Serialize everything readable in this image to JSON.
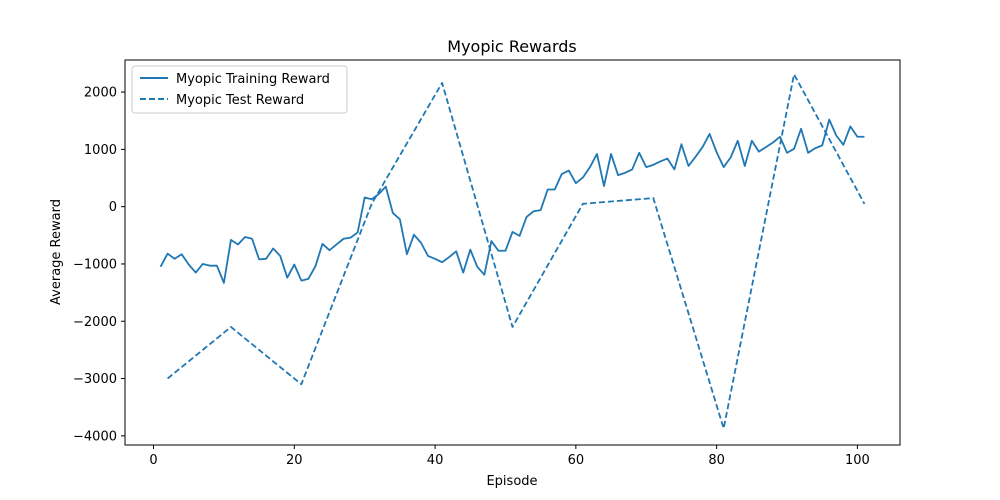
{
  "chart_data": {
    "type": "line",
    "title": "Myopic Rewards",
    "xlabel": "Episode",
    "ylabel": "Average Reward",
    "xlim": [
      -4.05,
      106.05
    ],
    "ylim": [
      -4160,
      2560
    ],
    "xticks": [
      0,
      20,
      40,
      60,
      80,
      100
    ],
    "yticks": [
      -4000,
      -3000,
      -2000,
      -1000,
      0,
      1000,
      2000
    ],
    "grid": false,
    "legend_position": "upper-left",
    "series": [
      {
        "name": "Myopic Training Reward",
        "style": "solid",
        "color": "#1f77b4",
        "x": [
          1,
          2,
          3,
          4,
          5,
          6,
          7,
          8,
          9,
          10,
          11,
          12,
          13,
          14,
          15,
          16,
          17,
          18,
          19,
          20,
          21,
          22,
          23,
          24,
          25,
          26,
          27,
          28,
          29,
          30,
          31,
          32,
          33,
          34,
          35,
          36,
          37,
          38,
          39,
          40,
          41,
          42,
          43,
          44,
          45,
          46,
          47,
          48,
          49,
          50,
          51,
          52,
          53,
          54,
          55,
          56,
          57,
          58,
          59,
          60,
          61,
          62,
          63,
          64,
          65,
          66,
          67,
          68,
          69,
          70,
          71,
          72,
          73,
          74,
          75,
          76,
          77,
          78,
          79,
          80,
          81,
          82,
          83,
          84,
          85,
          86,
          87,
          88,
          89,
          90,
          91,
          92,
          93,
          94,
          95,
          96,
          97,
          98,
          99,
          100,
          101
        ],
        "y": [
          -1050,
          -820,
          -910,
          -830,
          -1010,
          -1150,
          -1000,
          -1030,
          -1030,
          -1330,
          -580,
          -660,
          -530,
          -560,
          -920,
          -910,
          -730,
          -860,
          -1240,
          -1010,
          -1290,
          -1260,
          -1040,
          -650,
          -760,
          -660,
          -560,
          -540,
          -450,
          160,
          130,
          220,
          350,
          -110,
          -220,
          -830,
          -490,
          -630,
          -860,
          -910,
          -970,
          -880,
          -780,
          -1150,
          -750,
          -1050,
          -1190,
          -600,
          -770,
          -770,
          -440,
          -510,
          -180,
          -80,
          -60,
          300,
          300,
          570,
          630,
          410,
          510,
          690,
          920,
          360,
          920,
          550,
          590,
          650,
          940,
          690,
          730,
          790,
          840,
          650,
          1090,
          710,
          870,
          1040,
          1270,
          950,
          690,
          860,
          1150,
          710,
          1150,
          960,
          1040,
          1120,
          1220,
          940,
          1010,
          1360,
          940,
          1020,
          1070,
          1520,
          1240,
          1080,
          1400,
          1220,
          1220
        ]
      },
      {
        "name": "Myopic Test Reward",
        "style": "dashed",
        "color": "#1f77b4",
        "x": [
          2,
          11,
          21,
          31,
          41,
          51,
          61,
          71,
          81,
          91,
          101
        ],
        "y": [
          -3000,
          -2100,
          -3100,
          50,
          2160,
          -2100,
          50,
          150,
          -3870,
          2310,
          50
        ]
      }
    ]
  }
}
